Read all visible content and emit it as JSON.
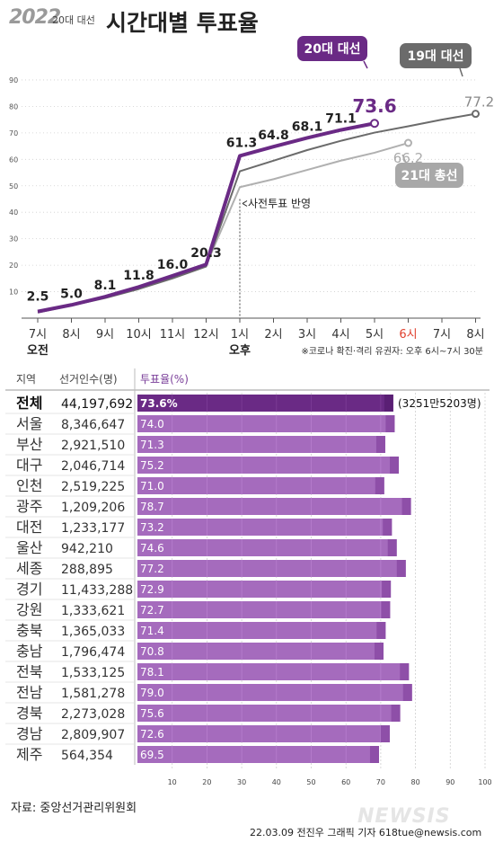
{
  "header": {
    "logo": "2022",
    "subtitle": "20대 대선",
    "title": "시간대별 투표율"
  },
  "chart_data": [
    {
      "type": "line",
      "x_labels": [
        "7시",
        "8시",
        "9시",
        "10시",
        "11시",
        "12시",
        "1시",
        "2시",
        "3시",
        "4시",
        "5시",
        "6시",
        "7시",
        "8시"
      ],
      "x_label_highlight_index": 11,
      "am_label": "오전",
      "pm_label": "오후",
      "y_ticks": [
        "10",
        "20",
        "30",
        "40",
        "50",
        "60",
        "70",
        "80",
        "90"
      ],
      "ylim": [
        0,
        90
      ],
      "series": [
        {
          "name": "20대 대선",
          "color": "#6a2a85",
          "values": [
            2.5,
            5.0,
            8.1,
            11.8,
            16.0,
            20.3,
            61.3,
            64.8,
            68.1,
            71.1,
            73.6
          ],
          "labels": [
            "2.5",
            "5.0",
            "8.1",
            "11.8",
            "16.0",
            "20.3",
            "61.3",
            "64.8",
            "68.1",
            "71.1",
            "73.6"
          ]
        },
        {
          "name": "19대 대선",
          "color": "#6b6b6b",
          "values": [
            2.1,
            4.8,
            7.6,
            11.0,
            15.0,
            19.5,
            55.5,
            59.5,
            63.5,
            67.0,
            70.1,
            72.5,
            75.0,
            77.2
          ],
          "end_label": "77.2"
        },
        {
          "name": "21대 총선",
          "color": "#b0b0b0",
          "values": [
            2.2,
            4.9,
            7.8,
            11.2,
            15.5,
            20.0,
            49.5,
            52.5,
            56.0,
            59.5,
            62.5,
            66.2
          ],
          "end_label": "66.2"
        }
      ],
      "annotation": "사전투표 반영",
      "footnote": "※코로나 확진·격리 유권자: 오후 6시~7시 30분"
    },
    {
      "type": "bar",
      "header": {
        "region": "지역",
        "electors": "선거인수(명)",
        "turnout": "투표율(%)"
      },
      "x_ticks": [
        "10",
        "20",
        "30",
        "40",
        "50",
        "60",
        "70",
        "80",
        "90",
        "100"
      ],
      "xlim": [
        0,
        100
      ],
      "total_note": "(3251만5203명)",
      "rows": [
        {
          "region": "전체",
          "electors": "44,197,692",
          "turnout": 73.6,
          "label": "73.6%"
        },
        {
          "region": "서울",
          "electors": "8,346,647",
          "turnout": 74.0,
          "label": "74.0"
        },
        {
          "region": "부산",
          "electors": "2,921,510",
          "turnout": 71.3,
          "label": "71.3"
        },
        {
          "region": "대구",
          "electors": "2,046,714",
          "turnout": 75.2,
          "label": "75.2"
        },
        {
          "region": "인천",
          "electors": "2,519,225",
          "turnout": 71.0,
          "label": "71.0"
        },
        {
          "region": "광주",
          "electors": "1,209,206",
          "turnout": 78.7,
          "label": "78.7"
        },
        {
          "region": "대전",
          "electors": "1,233,177",
          "turnout": 73.2,
          "label": "73.2"
        },
        {
          "region": "울산",
          "electors": "942,210",
          "turnout": 74.6,
          "label": "74.6"
        },
        {
          "region": "세종",
          "electors": "288,895",
          "turnout": 77.2,
          "label": "77.2"
        },
        {
          "region": "경기",
          "electors": "11,433,288",
          "turnout": 72.9,
          "label": "72.9"
        },
        {
          "region": "강원",
          "electors": "1,333,621",
          "turnout": 72.7,
          "label": "72.7"
        },
        {
          "region": "충북",
          "electors": "1,365,033",
          "turnout": 71.4,
          "label": "71.4"
        },
        {
          "region": "충남",
          "electors": "1,796,474",
          "turnout": 70.8,
          "label": "70.8"
        },
        {
          "region": "전북",
          "electors": "1,533,125",
          "turnout": 78.1,
          "label": "78.1"
        },
        {
          "region": "전남",
          "electors": "1,581,278",
          "turnout": 79.0,
          "label": "79.0"
        },
        {
          "region": "경북",
          "electors": "2,273,028",
          "turnout": 75.6,
          "label": "75.6"
        },
        {
          "region": "경남",
          "electors": "2,809,907",
          "turnout": 72.6,
          "label": "72.6"
        },
        {
          "region": "제주",
          "electors": "564,354",
          "turnout": 69.5,
          "label": "69.5"
        }
      ]
    }
  ],
  "footer": {
    "source": "자료: 중앙선거관리위원회",
    "credit": "22.03.09 전진우 그래픽 기자 618tue@newsis.com",
    "watermark": "NEWSIS"
  }
}
